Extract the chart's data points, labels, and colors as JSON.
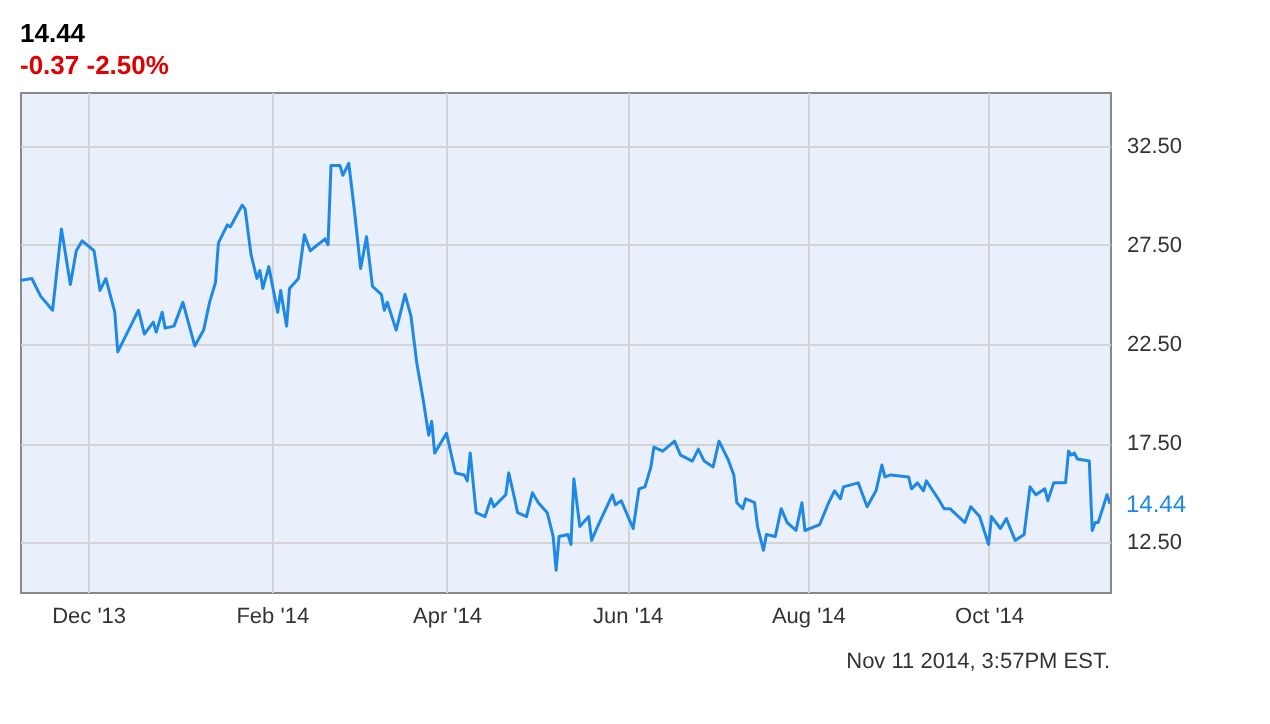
{
  "chart_data": {
    "type": "line",
    "title": "14.44",
    "subtitle": "-0.37 -2.50%",
    "x": [
      "2013-11-08",
      "2013-11-12",
      "2013-11-15",
      "2013-11-19",
      "2013-11-22",
      "2013-11-25",
      "2013-11-27",
      "2013-11-29",
      "2013-12-03",
      "2013-12-05",
      "2013-12-07",
      "2013-12-10",
      "2013-12-11",
      "2013-12-16",
      "2013-12-18",
      "2013-12-20",
      "2013-12-23",
      "2013-12-24",
      "2013-12-26",
      "2013-12-27",
      "2013-12-30",
      "2014-01-02",
      "2014-01-06",
      "2014-01-09",
      "2014-01-11",
      "2014-01-13",
      "2014-01-14",
      "2014-01-17",
      "2014-01-18",
      "2014-01-22",
      "2014-01-23",
      "2014-01-25",
      "2014-01-27",
      "2014-01-28",
      "2014-01-29",
      "2014-01-31",
      "2014-02-03",
      "2014-02-04",
      "2014-02-06",
      "2014-02-07",
      "2014-02-10",
      "2014-02-12",
      "2014-02-14",
      "2014-02-19",
      "2014-02-20",
      "2014-02-21",
      "2014-02-24",
      "2014-02-25",
      "2014-02-27",
      "2014-03-01",
      "2014-03-03",
      "2014-03-05",
      "2014-03-07",
      "2014-03-10",
      "2014-03-11",
      "2014-03-12",
      "2014-03-15",
      "2014-03-18",
      "2014-03-20",
      "2014-03-22",
      "2014-03-24",
      "2014-03-26",
      "2014-03-27",
      "2014-03-28",
      "2014-04-01",
      "2014-04-04",
      "2014-04-07",
      "2014-04-08",
      "2014-04-09",
      "2014-04-11",
      "2014-04-14",
      "2014-04-16",
      "2014-04-17",
      "2014-04-21",
      "2014-04-22",
      "2014-04-24",
      "2014-04-25",
      "2014-04-28",
      "2014-04-30",
      "2014-05-02",
      "2014-05-05",
      "2014-05-07",
      "2014-05-08",
      "2014-05-09",
      "2014-05-12",
      "2014-05-13",
      "2014-05-14",
      "2014-05-16",
      "2014-05-19",
      "2014-05-20",
      "2014-05-22",
      "2014-05-27",
      "2014-05-28",
      "2014-05-30",
      "2014-06-03",
      "2014-06-05",
      "2014-06-07",
      "2014-06-09",
      "2014-06-10",
      "2014-06-13",
      "2014-06-17",
      "2014-06-19",
      "2014-06-23",
      "2014-06-25",
      "2014-06-27",
      "2014-06-30",
      "2014-07-02",
      "2014-07-05",
      "2014-07-07",
      "2014-07-08",
      "2014-07-10",
      "2014-07-11",
      "2014-07-14",
      "2014-07-15",
      "2014-07-17",
      "2014-07-18",
      "2014-07-21",
      "2014-07-23",
      "2014-07-25",
      "2014-07-28",
      "2014-07-30",
      "2014-07-31",
      "2014-08-05",
      "2014-08-08",
      "2014-08-10",
      "2014-08-12",
      "2014-08-13",
      "2014-08-18",
      "2014-08-21",
      "2014-08-24",
      "2014-08-26",
      "2014-08-27",
      "2014-08-29",
      "2014-09-04",
      "2014-09-05",
      "2014-09-07",
      "2014-09-09",
      "2014-09-10",
      "2014-09-14",
      "2014-09-16",
      "2014-09-18",
      "2014-09-23",
      "2014-09-25",
      "2014-09-28",
      "2014-10-01",
      "2014-10-02",
      "2014-10-05",
      "2014-10-07",
      "2014-10-10",
      "2014-10-13",
      "2014-10-15",
      "2014-10-17",
      "2014-10-20",
      "2014-10-21",
      "2014-10-23",
      "2014-10-27",
      "2014-10-28",
      "2014-10-29",
      "2014-10-30",
      "2014-10-31",
      "2014-11-04",
      "2014-11-05",
      "2014-11-06",
      "2014-11-07",
      "2014-11-10",
      "2014-11-11"
    ],
    "series": [
      {
        "color": "#1e88e5",
        "values": [
          25.7,
          25.8,
          24.9,
          24.2,
          28.3,
          25.5,
          27.2,
          27.7,
          27.2,
          25.2,
          25.8,
          24.1,
          22.1,
          23.6,
          24.2,
          23.0,
          23.6,
          23.1,
          24.1,
          23.3,
          23.4,
          24.6,
          22.4,
          23.2,
          24.6,
          25.6,
          27.6,
          28.5,
          28.4,
          29.5,
          29.3,
          27.0,
          25.8,
          26.2,
          25.3,
          26.4,
          24.1,
          25.2,
          23.4,
          25.3,
          25.8,
          28.0,
          27.2,
          27.8,
          27.5,
          31.5,
          31.5,
          31.0,
          31.6,
          29.1,
          26.3,
          27.9,
          25.4,
          25.0,
          24.2,
          24.6,
          23.2,
          25.0,
          23.9,
          21.5,
          19.8,
          17.9,
          18.6,
          17.0,
          18.0,
          16.0,
          15.9,
          15.6,
          17.0,
          14.0,
          13.8,
          14.7,
          14.3,
          14.9,
          16.0,
          14.7,
          14.0,
          13.8,
          15.0,
          14.5,
          14.0,
          12.8,
          11.1,
          12.8,
          12.9,
          12.4,
          15.7,
          13.3,
          13.8,
          12.6,
          13.3,
          14.9,
          14.4,
          14.6,
          13.2,
          15.2,
          15.3,
          16.3,
          17.3,
          17.1,
          17.6,
          16.9,
          16.6,
          17.2,
          16.6,
          16.3,
          17.6,
          16.7,
          15.9,
          14.5,
          14.2,
          14.7,
          14.5,
          13.3,
          12.1,
          12.9,
          12.8,
          14.2,
          13.5,
          13.1,
          14.5,
          13.1,
          13.4,
          14.5,
          15.1,
          14.7,
          15.3,
          15.5,
          14.3,
          15.1,
          16.4,
          15.8,
          15.9,
          15.8,
          15.2,
          15.5,
          15.1,
          15.6,
          14.7,
          14.2,
          14.2,
          13.5,
          14.3,
          13.8,
          12.4,
          13.8,
          13.2,
          13.7,
          12.6,
          12.9,
          15.3,
          14.9,
          15.2,
          14.6,
          15.5,
          15.5,
          17.1,
          16.9,
          17.0,
          16.7,
          16.6,
          13.1,
          13.5,
          13.5,
          14.9,
          14.44
        ]
      }
    ],
    "xlim": [
      "2013-11-08",
      "2014-11-11"
    ],
    "xticks": [
      {
        "value": "2013-12-01",
        "label": "Dec '13"
      },
      {
        "value": "2014-02-01",
        "label": "Feb '14"
      },
      {
        "value": "2014-04-01",
        "label": "Apr '14"
      },
      {
        "value": "2014-06-01",
        "label": "Jun '14"
      },
      {
        "value": "2014-08-01",
        "label": "Aug '14"
      },
      {
        "value": "2014-10-01",
        "label": "Oct '14"
      }
    ],
    "ylim": [
      10,
      35.2
    ],
    "yticks": [
      {
        "value": 12.5,
        "label": "12.50"
      },
      {
        "value": 17.5,
        "label": "17.50"
      },
      {
        "value": 22.5,
        "label": "22.50"
      },
      {
        "value": 27.5,
        "label": "27.50"
      },
      {
        "value": 32.5,
        "label": "32.50"
      }
    ],
    "grid": true,
    "annotations": [
      {
        "text": "14.44",
        "x": "2014-11-11",
        "y": 14.44
      },
      "Nov 11 2014, 3:57PM EST."
    ]
  }
}
